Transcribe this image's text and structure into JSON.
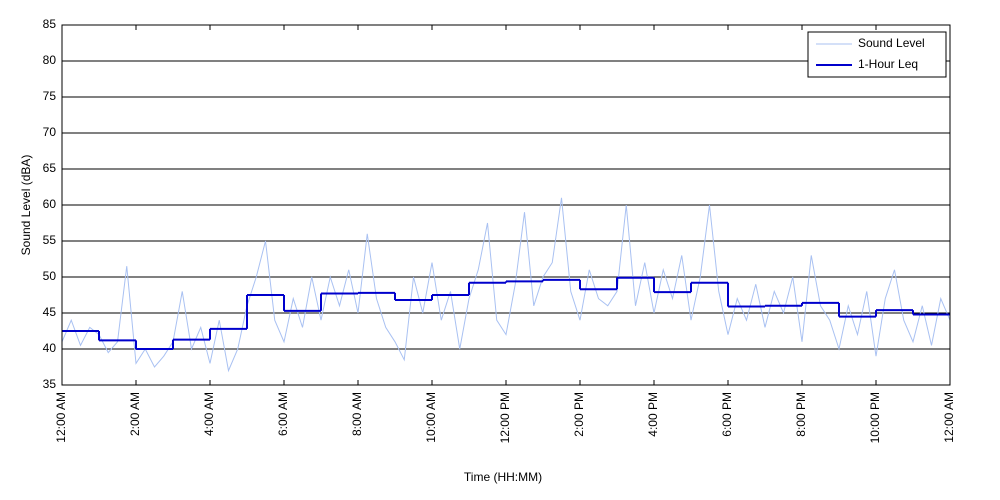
{
  "chart_data": {
    "type": "line",
    "xlabel": "Time (HH:MM)",
    "ylabel": "Sound Level (dBA)",
    "xlim": [
      0,
      24
    ],
    "ylim": [
      35,
      85
    ],
    "yticks": [
      35,
      40,
      45,
      50,
      55,
      60,
      65,
      70,
      75,
      80,
      85
    ],
    "xticks": [
      {
        "value": 0,
        "label": "12:00 AM"
      },
      {
        "value": 2,
        "label": "2:00 AM"
      },
      {
        "value": 4,
        "label": "4:00 AM"
      },
      {
        "value": 6,
        "label": "6:00 AM"
      },
      {
        "value": 8,
        "label": "8:00 AM"
      },
      {
        "value": 10,
        "label": "10:00 AM"
      },
      {
        "value": 12,
        "label": "12:00 PM"
      },
      {
        "value": 14,
        "label": "2:00 PM"
      },
      {
        "value": 16,
        "label": "4:00 PM"
      },
      {
        "value": 18,
        "label": "6:00 PM"
      },
      {
        "value": 20,
        "label": "8:00 PM"
      },
      {
        "value": 22,
        "label": "10:00 PM"
      },
      {
        "value": 24,
        "label": "12:00 AM"
      }
    ],
    "grid": true,
    "legend": "upper right",
    "series": [
      {
        "name": "Sound Level",
        "color": "#a9c1f2",
        "style": "line",
        "x": [
          0,
          0.25,
          0.5,
          0.75,
          1,
          1.25,
          1.5,
          1.75,
          2,
          2.25,
          2.5,
          2.75,
          3,
          3.25,
          3.5,
          3.75,
          4,
          4.25,
          4.5,
          4.75,
          5,
          5.25,
          5.5,
          5.75,
          6,
          6.25,
          6.5,
          6.75,
          7,
          7.25,
          7.5,
          7.75,
          8,
          8.25,
          8.5,
          8.75,
          9,
          9.25,
          9.5,
          9.75,
          10,
          10.25,
          10.5,
          10.75,
          11,
          11.25,
          11.5,
          11.75,
          12,
          12.25,
          12.5,
          12.75,
          13,
          13.25,
          13.5,
          13.75,
          14,
          14.25,
          14.5,
          14.75,
          15,
          15.25,
          15.5,
          15.75,
          16,
          16.25,
          16.5,
          16.75,
          17,
          17.25,
          17.5,
          17.75,
          18,
          18.25,
          18.5,
          18.75,
          19,
          19.25,
          19.5,
          19.75,
          20,
          20.25,
          20.5,
          20.75,
          21,
          21.25,
          21.5,
          21.75,
          22,
          22.25,
          22.5,
          22.75,
          23,
          23.25,
          23.5,
          23.75,
          24
        ],
        "values": [
          41,
          44,
          40.5,
          43,
          42,
          39.5,
          41,
          51.5,
          38,
          40,
          37.5,
          39,
          41,
          48,
          40,
          43,
          38,
          44,
          37,
          40,
          46,
          50,
          55,
          44,
          41,
          47,
          43,
          50,
          44,
          50,
          46,
          51,
          45,
          56,
          47,
          43,
          41,
          38.5,
          50,
          45,
          52,
          44,
          48,
          40,
          47,
          51,
          57.5,
          44,
          42,
          49,
          59,
          46,
          50,
          52,
          61,
          48,
          44,
          51,
          47,
          46,
          48,
          60,
          46,
          52,
          45,
          51,
          47,
          53,
          44,
          50,
          60,
          48,
          42,
          47,
          44,
          49,
          43,
          48,
          45,
          50,
          41,
          53,
          46,
          44,
          40,
          46,
          42,
          48,
          39,
          47,
          51,
          44,
          41,
          46,
          40.5,
          47,
          44
        ]
      },
      {
        "name": "1-Hour Leq",
        "color": "#0000cc",
        "style": "step",
        "x": [
          0,
          1,
          2,
          3,
          4,
          5,
          6,
          7,
          8,
          9,
          10,
          11,
          12,
          13,
          14,
          15,
          16,
          17,
          18,
          19,
          20,
          21,
          22,
          23
        ],
        "values": [
          42.5,
          41.2,
          40.0,
          41.3,
          42.8,
          47.5,
          45.3,
          47.7,
          47.8,
          46.8,
          47.5,
          49.2,
          49.4,
          49.6,
          48.3,
          49.9,
          47.9,
          49.2,
          45.9,
          46.0,
          46.4,
          44.5,
          45.4,
          44.8
        ]
      }
    ]
  }
}
